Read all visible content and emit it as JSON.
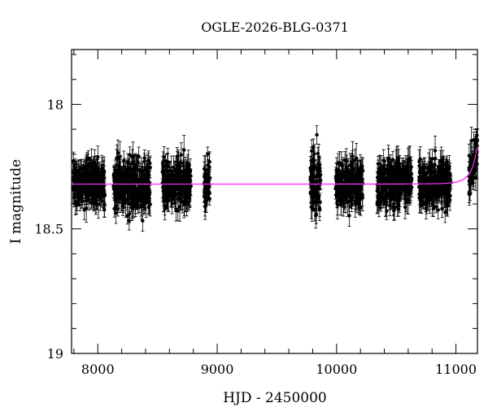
{
  "chart_data": {
    "type": "scatter",
    "title": "OGLE-2026-BLG-0371",
    "xlabel": "HJD - 2450000",
    "ylabel": "I magnitude",
    "xlim": [
      7780,
      11180
    ],
    "ylim": [
      19.0,
      17.78
    ],
    "y_inverted": true,
    "x_ticks": [
      8000,
      9000,
      10000,
      11000
    ],
    "x_tick_labels": [
      "8000",
      "9000",
      "10000",
      "11000"
    ],
    "y_ticks": [
      18.0,
      18.5,
      19.0
    ],
    "y_tick_labels": [
      "18",
      "18.5",
      "19"
    ],
    "grid": false,
    "legend": "none",
    "series": [
      {
        "kind": "points",
        "style": "black filled circles with vertical error bars",
        "color": "#000000",
        "baseline_mag": 18.32,
        "typical_error_mag": 0.04,
        "seasons": [
          {
            "x_range": [
              7790,
              8060
            ],
            "mag_range": [
              18.17,
              18.5
            ]
          },
          {
            "x_range": [
              8130,
              8440
            ],
            "mag_range": [
              18.12,
              18.5
            ]
          },
          {
            "x_range": [
              8540,
              8780
            ],
            "mag_range": [
              18.14,
              18.5
            ]
          },
          {
            "x_range": [
              8890,
              8940
            ],
            "mag_range": [
              18.2,
              18.52
            ]
          },
          {
            "x_range": [
              9780,
              9870
            ],
            "mag_range": [
              18.12,
              18.58
            ]
          },
          {
            "x_range": [
              9990,
              10220
            ],
            "mag_range": [
              18.12,
              18.46
            ]
          },
          {
            "x_range": [
              10340,
              10630
            ],
            "mag_range": [
              18.14,
              18.48
            ]
          },
          {
            "x_range": [
              10690,
              10960
            ],
            "mag_range": [
              18.12,
              18.46
            ]
          },
          {
            "x_range": [
              11110,
              11180
            ],
            "mag_range": [
              18.02,
              18.36
            ]
          }
        ]
      },
      {
        "kind": "model",
        "style": "line",
        "color": "#ff33ff",
        "baseline_mag": 18.32,
        "t0": 11285,
        "tE": 75,
        "u0": 0.02
      }
    ]
  }
}
